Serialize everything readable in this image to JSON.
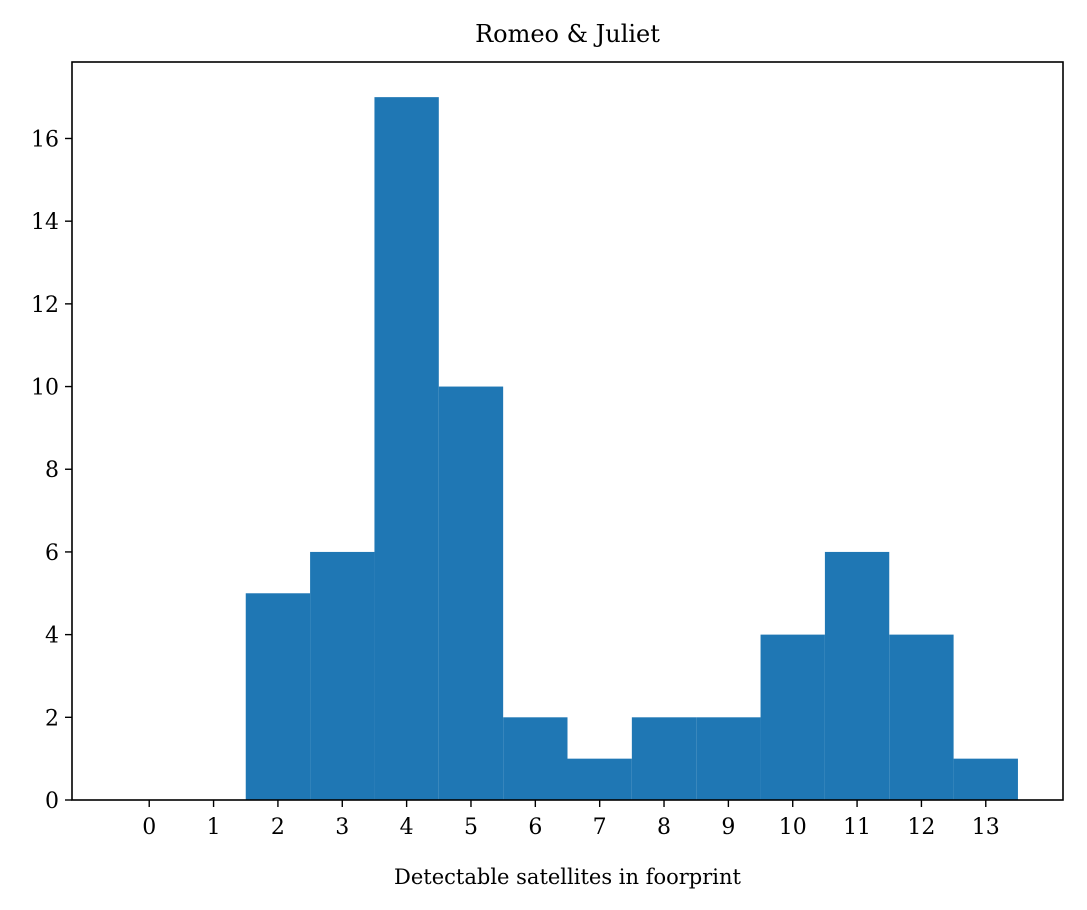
{
  "chart_data": {
    "type": "bar",
    "title": "Romeo & Juliet",
    "xlabel": "Detectable satellites in foorprint",
    "ylabel": "",
    "categories": [
      "0",
      "1",
      "2",
      "3",
      "4",
      "5",
      "6",
      "7",
      "8",
      "9",
      "10",
      "11",
      "12",
      "13"
    ],
    "x": [
      0,
      1,
      2,
      3,
      4,
      5,
      6,
      7,
      8,
      9,
      10,
      11,
      12,
      13
    ],
    "values": [
      0,
      0,
      5,
      6,
      17,
      10,
      2,
      1,
      2,
      2,
      4,
      6,
      4,
      1
    ],
    "xlim": [
      -1.2,
      14.2
    ],
    "ylim": [
      0,
      17.85
    ],
    "yticks": [
      0,
      2,
      4,
      6,
      8,
      10,
      12,
      14,
      16
    ],
    "grid": false,
    "bar_color": "#1f77b4"
  }
}
